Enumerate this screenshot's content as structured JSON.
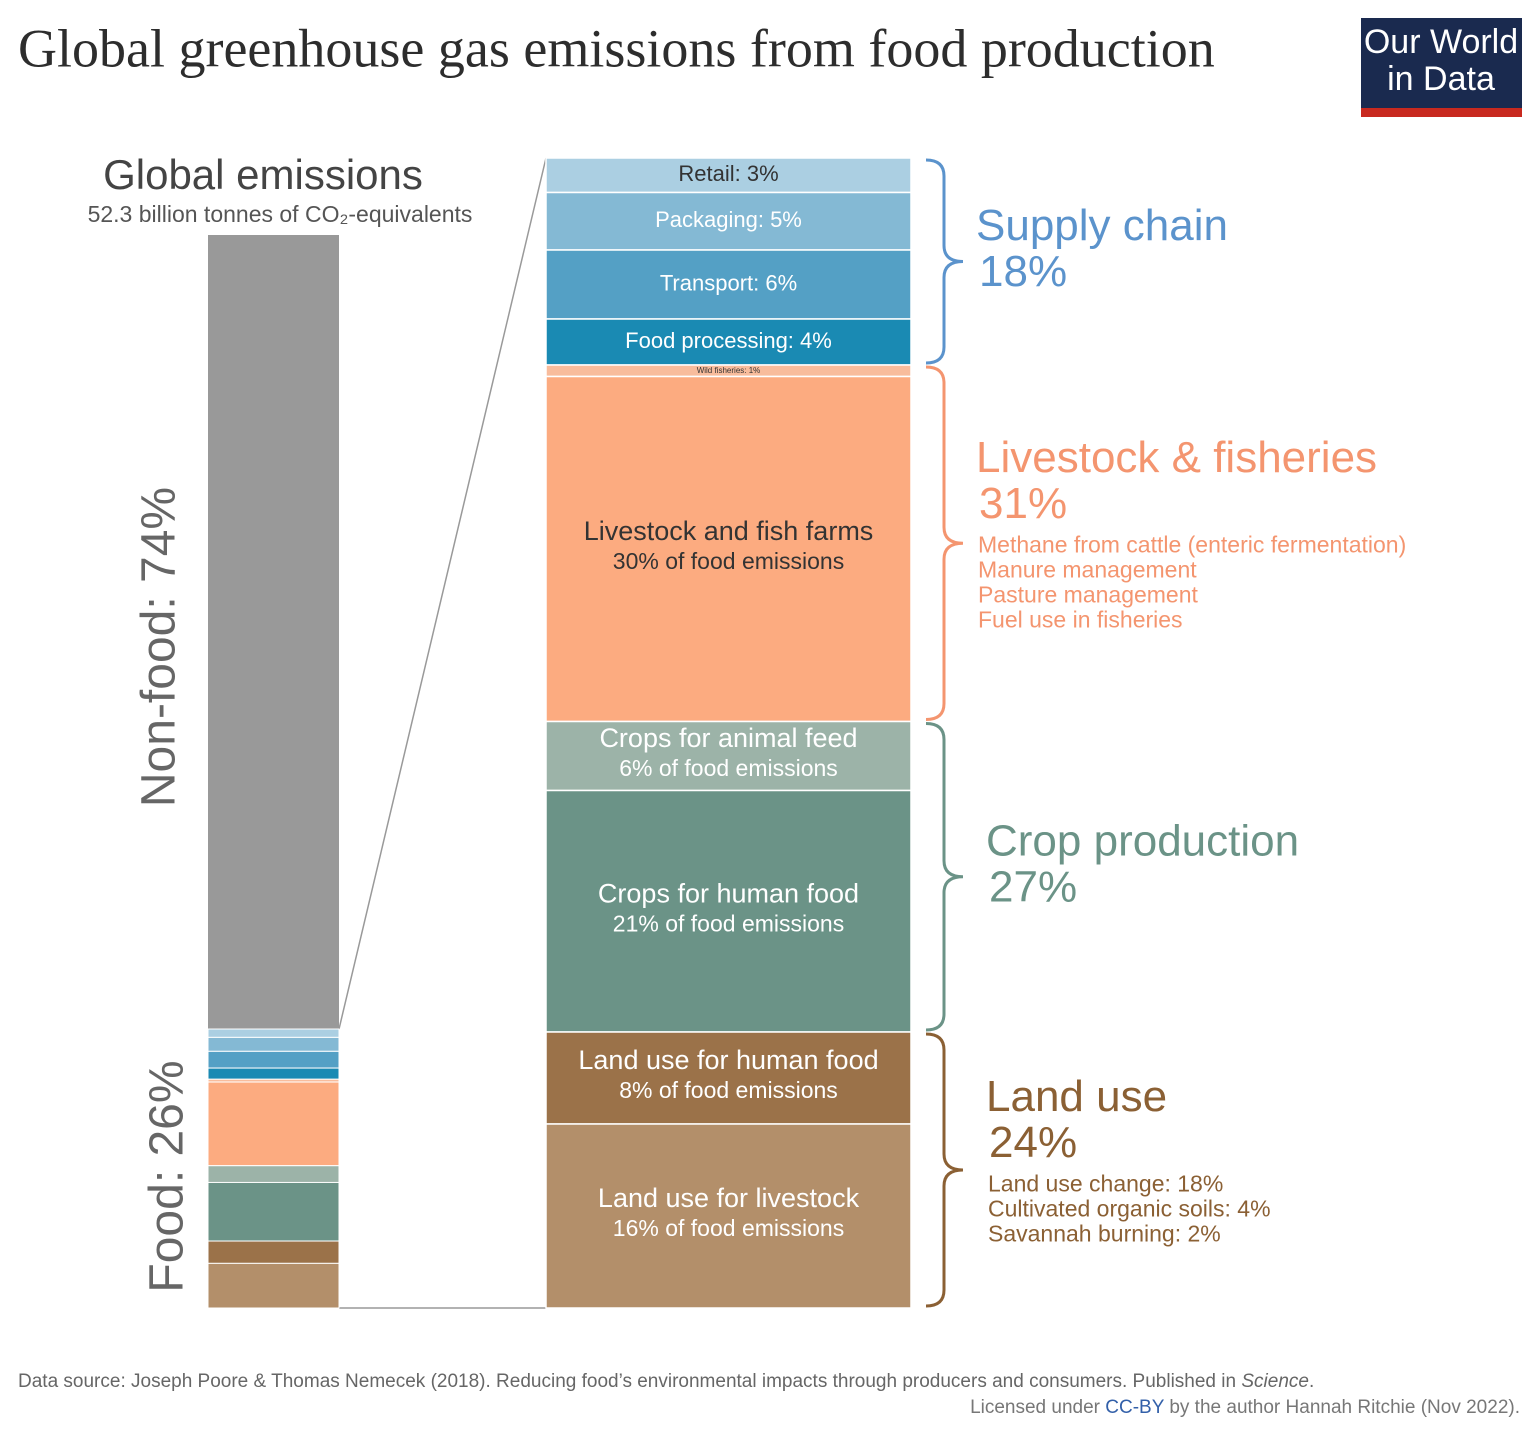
{
  "chart_data": {
    "type": "stacked-bar-breakdown",
    "title": "Global greenhouse gas emissions from food production",
    "logo": [
      "Our World",
      "in Data"
    ],
    "left_bar": {
      "title": "Global emissions",
      "subtitle": "52.3 billion tonnes of CO₂-equivalents",
      "color": "#999999",
      "parts": [
        {
          "label": "Non-food: 74%",
          "value": 74
        },
        {
          "label": "Food: 26%",
          "value": 26
        }
      ]
    },
    "groups": [
      {
        "title": "Supply chain",
        "value_label": "18%",
        "value": 18,
        "color": "#5b93cc",
        "details": [],
        "segments": [
          {
            "label": "Retail: 3%",
            "value": 3,
            "color": "#abcfe2"
          },
          {
            "label": "Packaging: 5%",
            "value": 5,
            "color": "#84b9d4"
          },
          {
            "label": "Transport: 6%",
            "value": 6,
            "color": "#54a0c5"
          },
          {
            "label": "Food processing: 4%",
            "value": 4,
            "color": "#1a8ab3"
          }
        ]
      },
      {
        "title": "Livestock & fisheries",
        "value_label": "31%",
        "value": 31,
        "color": "#f4956f",
        "details": [
          "Methane from cattle (enteric fermentation)",
          "Manure management",
          "Pasture management",
          "Fuel use in fisheries"
        ],
        "segments": [
          {
            "label": "Wild fisheries: 1%",
            "value": 1,
            "color": "#f8bc9c"
          },
          {
            "label": "Livestock and fish farms",
            "value_label": "30% of food emissions",
            "value": 30,
            "color": "#fcab80"
          }
        ]
      },
      {
        "title": "Crop production",
        "value_label": "27%",
        "value": 27,
        "color": "#6b9387",
        "details": [],
        "segments": [
          {
            "label": "Crops for animal feed",
            "value_label": "6% of food emissions",
            "value": 6,
            "color": "#9cb3a8"
          },
          {
            "label": "Crops for human food",
            "value_label": "21% of food emissions",
            "value": 21,
            "color": "#6b9387"
          }
        ]
      },
      {
        "title": "Land use",
        "value_label": "24%",
        "value": 24,
        "color": "#8b6034",
        "details": [
          "Land use change: 18%",
          "Cultivated organic soils: 4%",
          "Savannah burning: 2%"
        ],
        "segments": [
          {
            "label": "Land use for human food",
            "value_label": "8% of food emissions",
            "value": 8,
            "color": "#9b7249"
          },
          {
            "label": "Land use for livestock",
            "value_label": "16% of food emissions",
            "value": 16,
            "color": "#b38f6a"
          }
        ]
      }
    ],
    "source": [
      "Data source: Joseph Poore & Thomas Nemecek (2018). Reducing food’s environmental impacts through producers and consumers. Published in ",
      "Science",
      "."
    ],
    "license": [
      "Licensed under ",
      "CC-BY",
      " by the author Hannah Ritchie (Nov 2022)."
    ]
  }
}
